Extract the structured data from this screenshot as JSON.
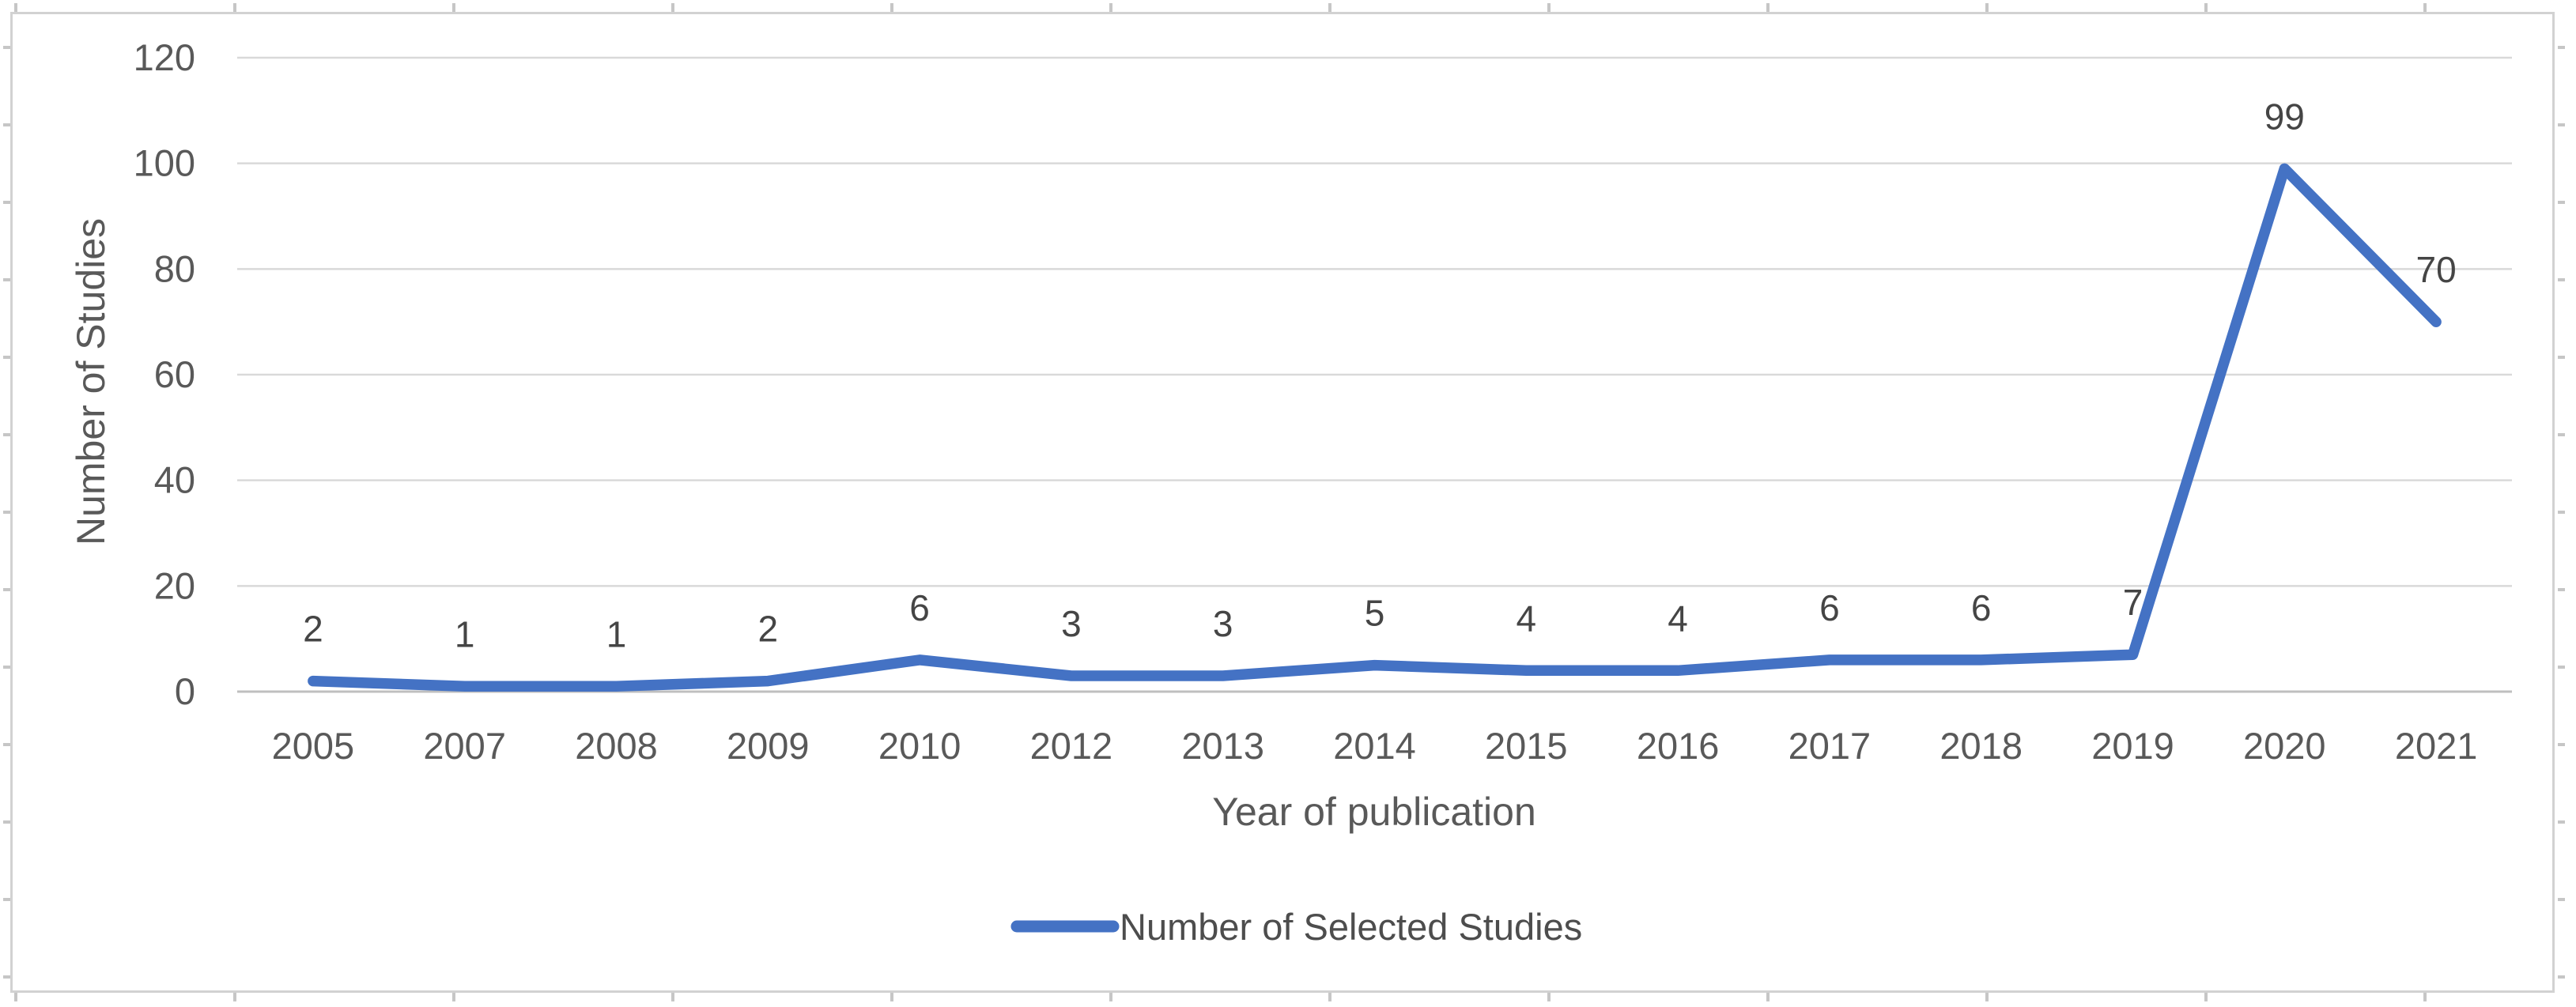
{
  "chart_data": {
    "type": "line",
    "title": "",
    "categories": [
      "2005",
      "2007",
      "2008",
      "2009",
      "2010",
      "2012",
      "2013",
      "2014",
      "2015",
      "2016",
      "2017",
      "2018",
      "2019",
      "2020",
      "2021"
    ],
    "series": [
      {
        "name": "Number of Selected Studies",
        "values": [
          2,
          1,
          1,
          2,
          6,
          3,
          3,
          5,
          4,
          4,
          6,
          6,
          7,
          99,
          70
        ]
      }
    ],
    "data_labels_shown": true,
    "xlabel": "Year of publication",
    "ylabel": "Number of Studies",
    "ylim": [
      0,
      120
    ],
    "yticks": [
      0,
      20,
      40,
      60,
      80,
      100,
      120
    ],
    "grid": true,
    "legend_position": "bottom",
    "colors": {
      "line": "#4472C4",
      "gridline": "#D9D9D9",
      "axis_line": "#BFBFBF",
      "tick_text": "#595959",
      "axis_title_text": "#595959",
      "data_label_text": "#454545",
      "legend_text": "#4d4d4d",
      "frame": "#D2D2D2"
    }
  }
}
